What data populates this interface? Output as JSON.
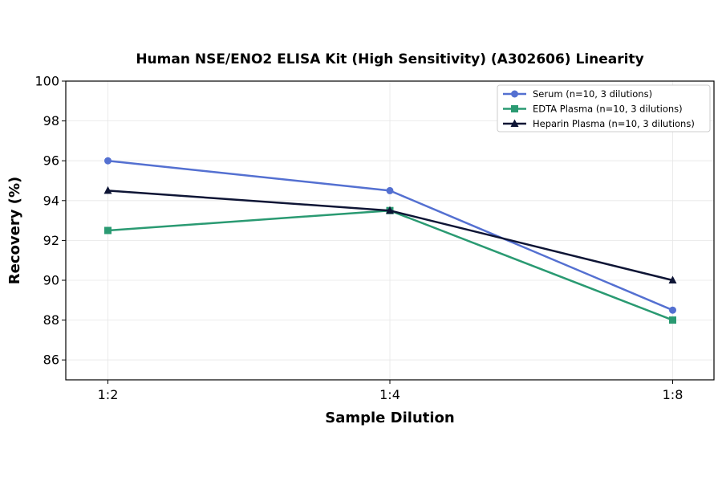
{
  "chart_data": {
    "type": "line",
    "title": "Human NSE/ENO2 ELISA Kit (High Sensitivity) (A302606) Linearity",
    "xlabel": "Sample Dilution",
    "ylabel": "Recovery (%)",
    "categories": [
      "1:2",
      "1:4",
      "1:8"
    ],
    "ylim": [
      85,
      100
    ],
    "yticks": [
      86,
      88,
      90,
      92,
      94,
      96,
      98,
      100
    ],
    "grid": true,
    "legend_position": "top-right",
    "series": [
      {
        "name": "Serum (n=10, 3 dilutions)",
        "values": [
          96,
          94.5,
          88.5
        ],
        "color": "#5470d1",
        "marker": "circle"
      },
      {
        "name": "EDTA Plasma (n=10, 3 dilutions)",
        "values": [
          92.5,
          93.5,
          88
        ],
        "color": "#2a9a72",
        "marker": "square"
      },
      {
        "name": "Heparin Plasma (n=10, 3 dilutions)",
        "values": [
          94.5,
          93.5,
          90
        ],
        "color": "#0e1535",
        "marker": "triangle"
      }
    ]
  }
}
